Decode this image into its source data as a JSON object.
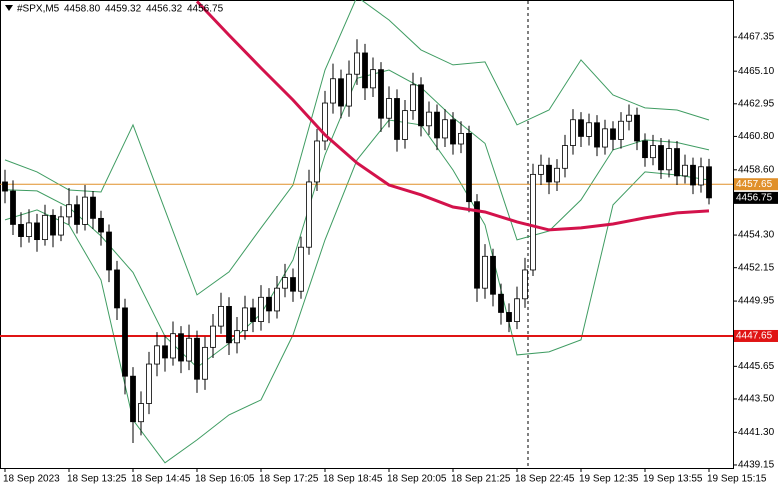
{
  "header": {
    "symbol": "#SPX,M5",
    "ohlc": [
      "4458.80",
      "4459.32",
      "4456.32",
      "4456.75"
    ]
  },
  "chart_data": {
    "type": "candlestick",
    "x": [
      0,
      2,
      4,
      6,
      8,
      10,
      12,
      14,
      16,
      18,
      20,
      22,
      24,
      26,
      28,
      30,
      32,
      34,
      36,
      38,
      40,
      42,
      44,
      46,
      48,
      50,
      52,
      54,
      56,
      58,
      60,
      62,
      64,
      66,
      68,
      70,
      72,
      74,
      76,
      78,
      80,
      82,
      84,
      86,
      88,
      90,
      92,
      94,
      96,
      98,
      100,
      102,
      104,
      106,
      108,
      110,
      112,
      114,
      116,
      118,
      120,
      122,
      124,
      126,
      128,
      130,
      132,
      134,
      136,
      138,
      140,
      142,
      144,
      146,
      148,
      150,
      152,
      154,
      156,
      158,
      160,
      162,
      164,
      166,
      168,
      170,
      172,
      174,
      176
    ],
    "candles": [
      [
        4457.8,
        4458.6,
        4456.4,
        4457.2
      ],
      [
        4457.2,
        4457.9,
        4454.3,
        4455.0
      ],
      [
        4455.0,
        4455.8,
        4453.5,
        4454.2
      ],
      [
        4454.2,
        4456.0,
        4453.8,
        4455.1
      ],
      [
        4455.1,
        4455.7,
        4453.2,
        4454.0
      ],
      [
        4454.0,
        4456.3,
        4453.6,
        4455.6
      ],
      [
        4455.6,
        4456.0,
        4453.5,
        4454.3
      ],
      [
        4454.3,
        4456.2,
        4453.9,
        4455.5
      ],
      [
        4455.5,
        4457.4,
        4455.0,
        4456.3
      ],
      [
        4456.3,
        4456.9,
        4454.4,
        4455.0
      ],
      [
        4455.0,
        4457.6,
        4454.6,
        4456.8
      ],
      [
        4456.8,
        4457.2,
        4454.7,
        4455.4
      ],
      [
        4455.4,
        4455.9,
        4453.6,
        4454.5
      ],
      [
        4454.5,
        4455.0,
        4451.2,
        4452.0
      ],
      [
        4452.0,
        4452.6,
        4448.7,
        4449.5
      ],
      [
        4449.5,
        4450.1,
        4443.8,
        4445.0
      ],
      [
        4445.0,
        4445.6,
        4440.6,
        4442.0
      ],
      [
        4442.0,
        4444.0,
        4441.1,
        4443.2
      ],
      [
        4443.2,
        4446.6,
        4442.5,
        4445.8
      ],
      [
        4445.8,
        4447.9,
        4445.0,
        4447.0
      ],
      [
        4447.0,
        4447.7,
        4445.3,
        4446.2
      ],
      [
        4446.2,
        4448.6,
        4445.7,
        4447.8
      ],
      [
        4447.8,
        4448.3,
        4445.2,
        4446.0
      ],
      [
        4446.0,
        4448.4,
        4445.4,
        4447.5
      ],
      [
        4447.5,
        4448.0,
        4443.9,
        4444.8
      ],
      [
        4444.8,
        4447.6,
        4444.1,
        4446.9
      ],
      [
        4446.9,
        4449.1,
        4446.2,
        4448.3
      ],
      [
        4448.3,
        4450.5,
        4447.8,
        4449.6
      ],
      [
        4449.6,
        4450.2,
        4446.4,
        4447.2
      ],
      [
        4447.2,
        4448.9,
        4446.5,
        4448.0
      ],
      [
        4448.0,
        4450.3,
        4447.4,
        4449.5
      ],
      [
        4449.5,
        4450.1,
        4447.9,
        4448.6
      ],
      [
        4448.6,
        4451.0,
        4448.0,
        4450.2
      ],
      [
        4450.2,
        4450.8,
        4448.5,
        4449.3
      ],
      [
        4449.3,
        4451.6,
        4448.8,
        4450.8
      ],
      [
        4450.8,
        4452.4,
        4450.2,
        4451.5
      ],
      [
        4451.5,
        4452.1,
        4449.9,
        4450.6
      ],
      [
        4450.6,
        4454.2,
        4450.1,
        4453.5
      ],
      [
        4453.5,
        4458.6,
        4453.0,
        4457.8
      ],
      [
        4457.8,
        4461.3,
        4457.2,
        4460.5
      ],
      [
        4460.5,
        4463.8,
        4459.9,
        4463.0
      ],
      [
        4463.0,
        4465.6,
        4462.3,
        4464.6
      ],
      [
        4464.6,
        4465.2,
        4462.0,
        4462.8
      ],
      [
        4462.8,
        4465.8,
        4462.1,
        4464.9
      ],
      [
        4464.9,
        4467.2,
        4464.2,
        4466.3
      ],
      [
        4466.3,
        4466.9,
        4463.2,
        4464.0
      ],
      [
        4464.0,
        4466.0,
        4463.4,
        4465.2
      ],
      [
        4465.2,
        4465.7,
        4461.1,
        4462.0
      ],
      [
        4462.0,
        4464.1,
        4461.4,
        4463.3
      ],
      [
        4463.3,
        4463.9,
        4459.8,
        4460.6
      ],
      [
        4460.6,
        4463.2,
        4460.0,
        4462.5
      ],
      [
        4462.5,
        4465.0,
        4461.9,
        4464.2
      ],
      [
        4464.2,
        4464.7,
        4460.8,
        4461.5
      ],
      [
        4461.5,
        4463.1,
        4460.9,
        4462.4
      ],
      [
        4462.4,
        4462.9,
        4459.9,
        4460.7
      ],
      [
        4460.7,
        4462.6,
        4460.1,
        4461.9
      ],
      [
        4461.9,
        4462.4,
        4459.6,
        4460.3
      ],
      [
        4460.3,
        4461.8,
        4459.7,
        4461.0
      ],
      [
        4461.0,
        4461.5,
        4455.8,
        4456.5
      ],
      [
        4456.5,
        4457.0,
        4449.9,
        4450.8
      ],
      [
        4450.8,
        4453.7,
        4450.1,
        4452.9
      ],
      [
        4452.9,
        4453.4,
        4449.6,
        4450.4
      ],
      [
        4450.4,
        4451.1,
        4448.4,
        4449.2
      ],
      [
        4449.2,
        4449.8,
        4447.9,
        4448.6
      ],
      [
        4448.6,
        4450.9,
        4448.1,
        4450.1
      ],
      [
        4450.1,
        4452.8,
        4449.5,
        4452.0
      ],
      [
        4452.0,
        4459.0,
        4451.6,
        4458.3
      ],
      [
        4458.3,
        4459.6,
        4457.6,
        4458.9
      ],
      [
        4458.9,
        4459.4,
        4457.0,
        4457.8
      ],
      [
        4457.8,
        4459.3,
        4457.2,
        4458.7
      ],
      [
        4458.7,
        4460.9,
        4458.1,
        4460.2
      ],
      [
        4460.2,
        4462.6,
        4459.6,
        4461.9
      ],
      [
        4461.9,
        4462.4,
        4460.1,
        4460.8
      ],
      [
        4460.8,
        4462.3,
        4460.2,
        4461.7
      ],
      [
        4461.7,
        4462.2,
        4459.5,
        4460.1
      ],
      [
        4460.1,
        4461.9,
        4459.6,
        4461.3
      ],
      [
        4461.3,
        4461.8,
        4459.9,
        4460.6
      ],
      [
        4460.6,
        4462.4,
        4460.0,
        4461.8
      ],
      [
        4461.8,
        4462.9,
        4461.2,
        4462.2
      ],
      [
        4462.2,
        4462.7,
        4459.9,
        4460.5
      ],
      [
        4460.5,
        4461.0,
        4458.8,
        4459.4
      ],
      [
        4459.4,
        4460.9,
        4458.9,
        4460.2
      ],
      [
        4460.2,
        4460.7,
        4458.0,
        4458.6
      ],
      [
        4458.6,
        4460.6,
        4458.1,
        4460.0
      ],
      [
        4460.0,
        4460.5,
        4457.6,
        4458.2
      ],
      [
        4458.2,
        4459.6,
        4457.7,
        4458.9
      ],
      [
        4458.9,
        4459.4,
        4457.0,
        4457.6
      ],
      [
        4457.6,
        4459.4,
        4457.1,
        4458.8
      ],
      [
        4458.8,
        4459.32,
        4456.32,
        4456.75
      ]
    ],
    "bull_color": "#ffffff",
    "bear_color": "#000000",
    "bollinger": {
      "color": "#3f9c62",
      "x": [
        0,
        8,
        16,
        24,
        32,
        40,
        48,
        56,
        64,
        72,
        80,
        88,
        96,
        104,
        112,
        120,
        128,
        136,
        144,
        152,
        160,
        168,
        176
      ],
      "upper": [
        4459.25,
        4458.46,
        4457.27,
        4457.14,
        4461.56,
        4455.96,
        4450.36,
        4451.87,
        4454.77,
        4457.6,
        4465.18,
        4470.0,
        4468.47,
        4466.5,
        4465.51,
        4465.71,
        4461.56,
        4462.54,
        4465.84,
        4463.53,
        4462.68,
        4462.54,
        4461.88
      ],
      "middle": [
        4457.28,
        4457.21,
        4456.12,
        4454.24,
        4451.84,
        4447.63,
        4445.58,
        4447.16,
        4449.11,
        4452.66,
        4459.58,
        4464.63,
        4465.18,
        4464.03,
        4462.05,
        4460.34,
        4453.98,
        4454.57,
        4456.62,
        4459.91,
        4460.57,
        4460.4,
        4459.91
      ],
      "lower": [
        4455.3,
        4455.96,
        4454.97,
        4451.34,
        4442.12,
        4439.29,
        4440.8,
        4442.45,
        4443.44,
        4447.72,
        4453.98,
        4459.25,
        4461.88,
        4461.56,
        4458.59,
        4454.97,
        4446.4,
        4446.6,
        4447.39,
        4456.29,
        4458.46,
        4458.26,
        4457.93
      ]
    },
    "moving_average": {
      "color": "#d3124b",
      "x": [
        48,
        56,
        64,
        72,
        80,
        88,
        96,
        104,
        112,
        120,
        128,
        136,
        144,
        152,
        160,
        168,
        176
      ],
      "values": [
        4469.7,
        4467.48,
        4465.31,
        4463.2,
        4460.9,
        4459.05,
        4457.6,
        4456.95,
        4456.15,
        4455.82,
        4455.17,
        4454.64,
        4454.77,
        4455.03,
        4455.43,
        4455.76,
        4455.89
      ]
    },
    "levels": [
      {
        "value": 4457.65,
        "color": "#e0902a"
      },
      {
        "value": 4447.65,
        "color": "#e01414"
      }
    ],
    "last_price": {
      "value": 4456.75,
      "color": "#000000"
    },
    "xlim": [
      -1.25,
      182
    ],
    "ylim": [
      4438.95,
      4469.79
    ],
    "yticks": [
      4467.35,
      {
        "value": 4465.1,
        "label": "4465.10"
      },
      4462.95,
      {
        "value": 4460.8,
        "label": "4460.80"
      },
      {
        "value": 4458.6,
        "label": "4458.60"
      },
      {
        "value": 4454.3,
        "label": "4454.30"
      },
      4452.15,
      4449.95,
      4445.65,
      {
        "value": 4443.5,
        "label": "4443.50"
      },
      {
        "value": 4441.3,
        "label": "4441.30"
      },
      4439.15
    ],
    "xticks": [
      {
        "value": 0,
        "label": "18 Sep 2023"
      },
      {
        "value": 16,
        "label": "18 Sep 13:25"
      },
      {
        "value": 32,
        "label": "18 Sep 14:45"
      },
      {
        "value": 48,
        "label": "18 Sep 16:05"
      },
      {
        "value": 64,
        "label": "18 Sep 17:25"
      },
      {
        "value": 80,
        "label": "18 Sep 18:45"
      },
      {
        "value": 96,
        "label": "18 Sep 20:05"
      },
      {
        "value": 112,
        "label": "18 Sep 21:25"
      },
      {
        "value": 128,
        "label": "18 Sep 22:45"
      },
      {
        "value": 144,
        "label": "19 Sep 12:35"
      },
      {
        "value": 160,
        "label": "19 Sep 13:55"
      },
      {
        "value": 176,
        "label": "19 Sep 15:15"
      }
    ]
  }
}
